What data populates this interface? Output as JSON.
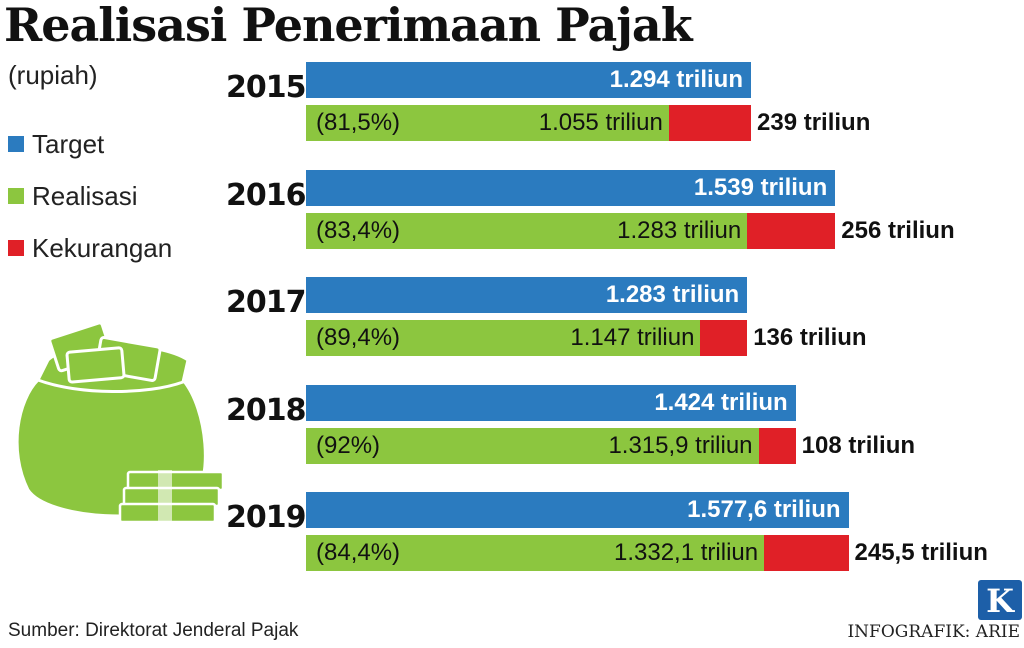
{
  "title": "Realisasi Penerimaan Pajak",
  "unit": "(rupiah)",
  "legend": [
    {
      "label": "Target",
      "color": "#2b7bbf"
    },
    {
      "label": "Realisasi",
      "color": "#8cc63f"
    },
    {
      "label": "Kekurangan",
      "color": "#e02027"
    }
  ],
  "source": "Sumber: Direktorat Jenderal Pajak",
  "credit": "INFOGRAFIK: ARIE",
  "logo_letter": "K",
  "icons": [
    "money-bag-icon",
    "money-stack-icon",
    "kompas-logo-icon"
  ],
  "chart_data": {
    "type": "bar",
    "title": "Realisasi Penerimaan Pajak",
    "unit": "(rupiah)",
    "categories": [
      "2015",
      "2016",
      "2017",
      "2018",
      "2019"
    ],
    "series": [
      {
        "name": "Target",
        "values": [
          1294,
          1539,
          1283,
          1424,
          1577.6
        ]
      },
      {
        "name": "Realisasi",
        "values": [
          1055,
          1283,
          1147,
          1315.9,
          1332.1
        ]
      },
      {
        "name": "Kekurangan",
        "values": [
          239,
          256,
          136,
          108,
          245.5
        ]
      }
    ],
    "labels": {
      "target": [
        "1.294 triliun",
        "1.539 triliun",
        "1.283 triliun",
        "1.424 triliun",
        "1.577,6 triliun"
      ],
      "realisasi": [
        "1.055 triliun",
        "1.283 triliun",
        "1.147 triliun",
        "1.315,9 triliun",
        "1.332,1 triliun"
      ],
      "percent": [
        "(81,5%)",
        "(83,4%)",
        "(89,4%)",
        "(92%)",
        "(84,4%)"
      ],
      "kekurangan": [
        "239 triliun",
        "256 triliun",
        "136 triliun",
        "108 triliun",
        "245,5 triliun"
      ]
    }
  }
}
